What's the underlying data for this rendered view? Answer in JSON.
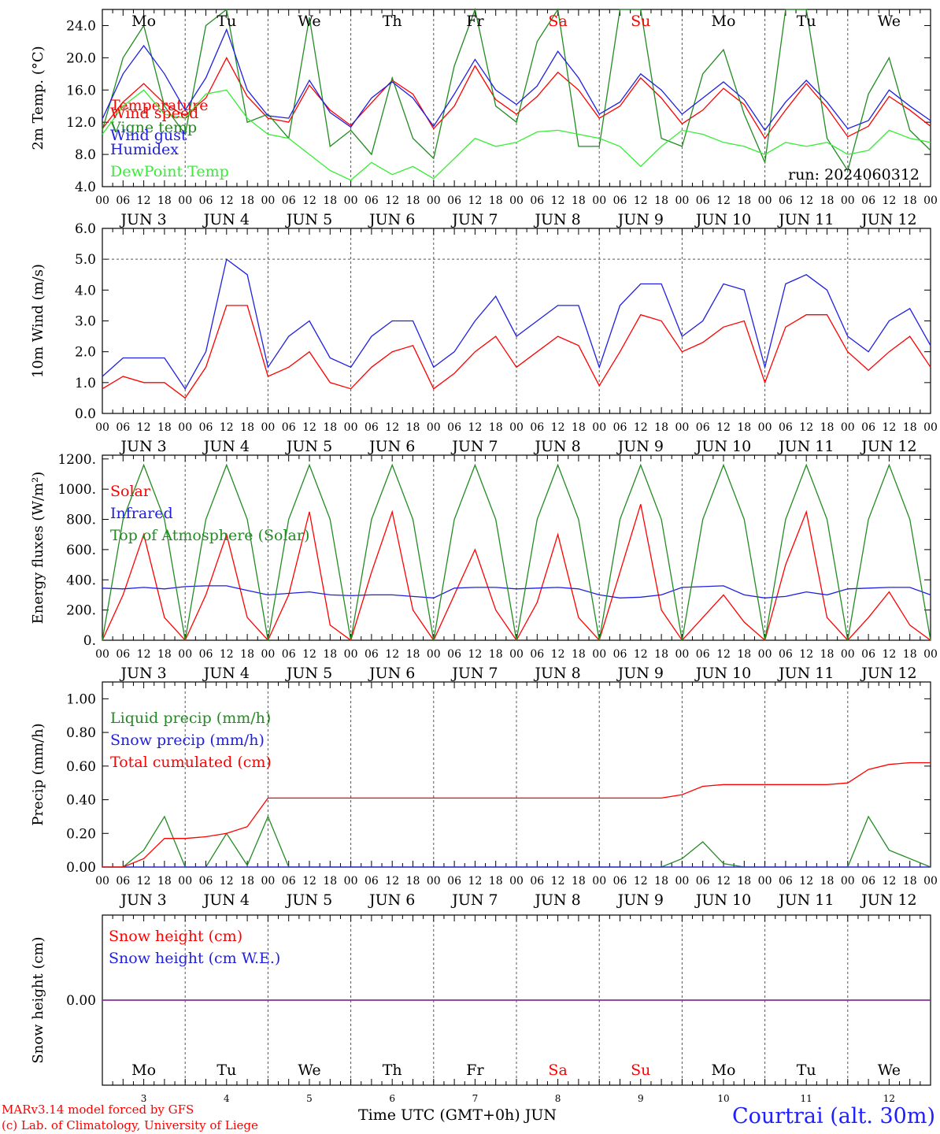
{
  "day_names": [
    "Mo",
    "Tu",
    "We",
    "Th",
    "Fr",
    "Sa",
    "Su",
    "Mo",
    "Tu",
    "We"
  ],
  "day_name_colors": [
    "#000000",
    "#000000",
    "#000000",
    "#000000",
    "#000000",
    "#ff0000",
    "#ff0000",
    "#000000",
    "#000000",
    "#000000"
  ],
  "date_labels": [
    "JUN  3",
    "JUN  4",
    "JUN  5",
    "JUN  6",
    "JUN  7",
    "JUN  8",
    "JUN  9",
    "JUN 10",
    "JUN 11",
    "JUN 12"
  ],
  "hour_ticks": [
    "00",
    "06",
    "12",
    "18"
  ],
  "day_numbers": [
    "3",
    "4",
    "5",
    "6",
    "7",
    "8",
    "9",
    "10",
    "11",
    "12"
  ],
  "x_axis_title": "Time UTC (GMT+0h)",
  "x_axis_month": "JUN",
  "run_label": "run: 2024060312",
  "credits": [
    "MARv3.14 model forced by GFS",
    "(c) Lab. of Climatology, University of Liege"
  ],
  "station": "Courtrai (alt. 30m)",
  "colors": {
    "red": "#ff0000",
    "green": "#228b22",
    "blue": "#2020e0",
    "lightgreen": "#33ee33",
    "purple": "#8030a0"
  },
  "chart_data": [
    {
      "type": "line",
      "ylabel": "2m Temp. (°C)",
      "ylim": [
        4.0,
        26.0
      ],
      "yticks": [
        "4.0",
        "8.0",
        "12.0",
        "16.0",
        "20.0",
        "24.0"
      ],
      "x_hours_from": "2024-06-03 00 UTC",
      "x": [
        0,
        6,
        12,
        18,
        24,
        30,
        36,
        42,
        48,
        54,
        60,
        66,
        72,
        78,
        84,
        90,
        96,
        102,
        108,
        114,
        120,
        126,
        132,
        138,
        144,
        150,
        156,
        162,
        168,
        174,
        180,
        186,
        192,
        198,
        204,
        210,
        216,
        222,
        228,
        234,
        240
      ],
      "series": [
        {
          "name": "Temperature",
          "color": "red",
          "values": [
            11.2,
            14.5,
            16.8,
            14.3,
            12.8,
            15.0,
            20.0,
            15.2,
            12.5,
            12.0,
            16.6,
            13.5,
            11.6,
            14.4,
            17.2,
            15.5,
            11.2,
            14.0,
            19.0,
            14.8,
            13.0,
            15.2,
            18.2,
            16.0,
            12.5,
            14.0,
            17.5,
            15.0,
            11.8,
            13.5,
            16.2,
            14.2,
            10.0,
            13.5,
            16.8,
            13.8,
            10.2,
            11.5,
            15.2,
            13.5,
            11.5
          ]
        },
        {
          "name": "Vigne temp",
          "color": "green",
          "values": [
            11.0,
            20.0,
            24.0,
            14.0,
            10.5,
            24.0,
            28.0,
            12.0,
            13.0,
            10.0,
            25.0,
            9.0,
            11.0,
            8.0,
            17.5,
            10.0,
            7.5,
            19.0,
            28.0,
            14.0,
            12.0,
            22.0,
            28.0,
            9.0,
            9.0,
            27.0,
            27.0,
            10.0,
            9.0,
            18.0,
            21.0,
            13.0,
            7.0,
            26.0,
            27.0,
            10.0,
            6.0,
            15.5,
            20.0,
            11.0,
            8.5
          ]
        },
        {
          "name": "Humidex",
          "color": "blue",
          "values": [
            12.4,
            18.0,
            21.5,
            18.0,
            13.5,
            17.5,
            23.5,
            16.0,
            12.8,
            12.5,
            17.2,
            13.2,
            11.4,
            15.0,
            17.0,
            15.0,
            11.5,
            15.5,
            19.8,
            16.0,
            14.2,
            16.5,
            20.8,
            17.5,
            13.0,
            14.5,
            18.0,
            16.0,
            13.0,
            15.0,
            17.0,
            14.8,
            11.0,
            14.5,
            17.2,
            14.5,
            11.2,
            12.2,
            16.0,
            14.0,
            12.2
          ]
        },
        {
          "name": "DewPoint Temp",
          "color": "lightgreen",
          "values": [
            10.5,
            14.0,
            16.0,
            13.0,
            12.5,
            15.5,
            16.0,
            12.5,
            10.5,
            10.0,
            8.0,
            6.0,
            4.8,
            7.0,
            5.5,
            6.5,
            5.0,
            7.5,
            10.0,
            9.0,
            9.5,
            10.8,
            11.0,
            10.5,
            10.0,
            9.0,
            6.5,
            9.0,
            11.0,
            10.5,
            9.5,
            9.0,
            8.0,
            9.5,
            9.0,
            9.5,
            8.0,
            8.5,
            11.0,
            10.0,
            9.5
          ]
        }
      ]
    },
    {
      "type": "line",
      "ylabel": "10m Wind (m/s)",
      "ylim": [
        0.0,
        6.0
      ],
      "yticks": [
        "0.0",
        "1.0",
        "2.0",
        "3.0",
        "4.0",
        "5.0",
        "6.0"
      ],
      "reference_line": 5.0,
      "x": [
        0,
        6,
        12,
        18,
        24,
        30,
        36,
        42,
        48,
        54,
        60,
        66,
        72,
        78,
        84,
        90,
        96,
        102,
        108,
        114,
        120,
        126,
        132,
        138,
        144,
        150,
        156,
        162,
        168,
        174,
        180,
        186,
        192,
        198,
        204,
        210,
        216,
        222,
        228,
        234,
        240
      ],
      "series": [
        {
          "name": "Wind speed",
          "color": "red",
          "values": [
            0.8,
            1.2,
            1.0,
            1.0,
            0.5,
            1.5,
            3.5,
            3.5,
            1.2,
            1.5,
            2.0,
            1.0,
            0.8,
            1.5,
            2.0,
            2.2,
            0.8,
            1.3,
            2.0,
            2.5,
            1.5,
            2.0,
            2.5,
            2.2,
            0.9,
            2.0,
            3.2,
            3.0,
            2.0,
            2.3,
            2.8,
            3.0,
            1.0,
            2.8,
            3.2,
            3.2,
            2.0,
            1.4,
            2.0,
            2.5,
            1.5
          ]
        },
        {
          "name": "Wind gust",
          "color": "blue",
          "values": [
            1.2,
            1.8,
            1.8,
            1.8,
            0.8,
            2.0,
            5.0,
            4.5,
            1.5,
            2.5,
            3.0,
            1.8,
            1.5,
            2.5,
            3.0,
            3.0,
            1.5,
            2.0,
            3.0,
            3.8,
            2.5,
            3.0,
            3.5,
            3.5,
            1.5,
            3.5,
            4.2,
            4.2,
            2.5,
            3.0,
            4.2,
            4.0,
            1.5,
            4.2,
            4.5,
            4.0,
            2.5,
            2.0,
            3.0,
            3.4,
            2.2
          ]
        }
      ]
    },
    {
      "type": "line",
      "ylabel": "Energy fluxes (W/m²)",
      "ylim": [
        0,
        1200
      ],
      "yticks": [
        "0.",
        "200.",
        "400.",
        "600.",
        "800.",
        "1000.",
        "1200."
      ],
      "x": [
        0,
        6,
        12,
        18,
        24,
        30,
        36,
        42,
        48,
        54,
        60,
        66,
        72,
        78,
        84,
        90,
        96,
        102,
        108,
        114,
        120,
        126,
        132,
        138,
        144,
        150,
        156,
        162,
        168,
        174,
        180,
        186,
        192,
        198,
        204,
        210,
        216,
        222,
        228,
        234,
        240
      ],
      "series": [
        {
          "name": "Solar",
          "color": "red",
          "values": [
            0,
            300,
            700,
            150,
            0,
            300,
            700,
            150,
            0,
            300,
            850,
            100,
            0,
            450,
            850,
            200,
            0,
            300,
            600,
            200,
            0,
            250,
            700,
            150,
            0,
            450,
            900,
            200,
            0,
            150,
            300,
            120,
            0,
            500,
            850,
            150,
            0,
            150,
            320,
            100,
            0
          ]
        },
        {
          "name": "Infrared",
          "color": "blue",
          "values": [
            345,
            340,
            350,
            340,
            355,
            360,
            360,
            330,
            300,
            310,
            320,
            300,
            295,
            300,
            300,
            290,
            280,
            345,
            350,
            350,
            340,
            345,
            350,
            340,
            300,
            280,
            285,
            300,
            350,
            355,
            360,
            300,
            280,
            290,
            320,
            300,
            340,
            345,
            350,
            350,
            300
          ]
        },
        {
          "name": "Top of Atmosphere (Solar)",
          "color": "green",
          "values": [
            0,
            800,
            1160,
            800,
            0,
            800,
            1160,
            800,
            0,
            800,
            1160,
            800,
            0,
            800,
            1160,
            800,
            0,
            800,
            1160,
            800,
            0,
            800,
            1160,
            800,
            0,
            800,
            1160,
            800,
            0,
            800,
            1160,
            800,
            0,
            800,
            1160,
            800,
            0,
            800,
            1160,
            800,
            0
          ]
        }
      ]
    },
    {
      "type": "line",
      "ylabel": "Precip (mm/h)",
      "ylim": [
        0.0,
        1.1
      ],
      "yticks": [
        "0.00",
        "0.20",
        "0.40",
        "0.60",
        "0.80",
        "1.00"
      ],
      "x": [
        0,
        6,
        12,
        18,
        24,
        30,
        36,
        42,
        48,
        54,
        60,
        66,
        72,
        78,
        84,
        90,
        96,
        102,
        108,
        114,
        120,
        126,
        132,
        138,
        144,
        150,
        156,
        162,
        168,
        174,
        180,
        186,
        192,
        198,
        204,
        210,
        216,
        222,
        228,
        234,
        240
      ],
      "series": [
        {
          "name": "Liquid precip (mm/h)",
          "color": "green",
          "values": [
            0,
            0,
            0.1,
            0.3,
            0,
            0,
            0.2,
            0.01,
            0.3,
            0,
            0,
            0,
            0,
            0,
            0,
            0,
            0,
            0,
            0,
            0,
            0,
            0,
            0,
            0,
            0,
            0,
            0,
            0,
            0.05,
            0.15,
            0.02,
            0,
            0,
            0,
            0,
            0,
            0,
            0.3,
            0.1,
            0.05,
            0
          ]
        },
        {
          "name": "Snow precip (mm/h)",
          "color": "blue",
          "values": [
            0,
            0,
            0,
            0,
            0,
            0,
            0,
            0,
            0,
            0,
            0,
            0,
            0,
            0,
            0,
            0,
            0,
            0,
            0,
            0,
            0,
            0,
            0,
            0,
            0,
            0,
            0,
            0,
            0,
            0,
            0,
            0,
            0,
            0,
            0,
            0,
            0,
            0,
            0,
            0,
            0
          ]
        },
        {
          "name": "Total cumulated (cm)",
          "color": "red",
          "values": [
            0,
            0,
            0.05,
            0.17,
            0.17,
            0.18,
            0.2,
            0.24,
            0.41,
            0.41,
            0.41,
            0.41,
            0.41,
            0.41,
            0.41,
            0.41,
            0.41,
            0.41,
            0.41,
            0.41,
            0.41,
            0.41,
            0.41,
            0.41,
            0.41,
            0.41,
            0.41,
            0.41,
            0.43,
            0.48,
            0.49,
            0.49,
            0.49,
            0.49,
            0.49,
            0.49,
            0.5,
            0.58,
            0.61,
            0.62,
            0.62
          ]
        }
      ]
    },
    {
      "type": "line",
      "ylabel": "Snow height (cm)",
      "ylim": [
        -1.0,
        1.0
      ],
      "yticks": [
        "0.00"
      ],
      "x": [
        0,
        240
      ],
      "series": [
        {
          "name": "Snow height (cm)",
          "color": "red",
          "values": [
            0.0,
            0.0
          ]
        },
        {
          "name": "Snow height (cm W.E.)",
          "color": "blue",
          "values": [
            0.0,
            0.0
          ]
        }
      ]
    }
  ]
}
